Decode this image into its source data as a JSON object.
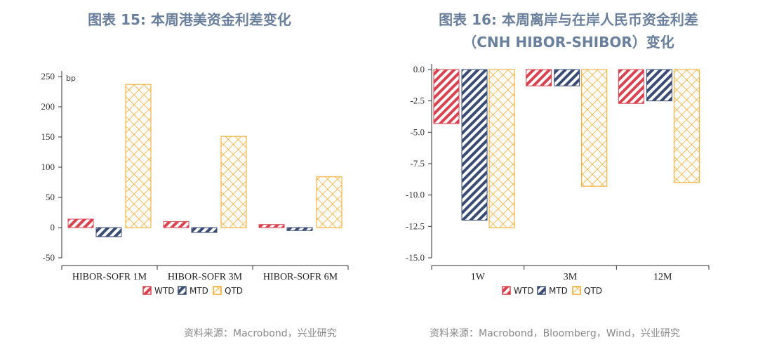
{
  "colors": {
    "WTD": "#d9434f",
    "MTD": "#3a4c74",
    "QTD": "#f5a623",
    "title": "#6a7f9c"
  },
  "charts": [
    {
      "title_lines": [
        "图表 15: 本周港美资金利差变化"
      ],
      "source": "资料来源：Macrobond，兴业研究",
      "chart_data": {
        "type": "bar",
        "unit": "bp",
        "categories": [
          "HIBOR-SOFR 1M",
          "HIBOR-SOFR 3M",
          "HIBOR-SOFR 6M"
        ],
        "series": [
          {
            "name": "WTD",
            "values": [
              14,
              10,
              5
            ]
          },
          {
            "name": "MTD",
            "values": [
              -15,
              -8,
              -5
            ]
          },
          {
            "name": "QTD",
            "values": [
              237,
              151,
              84
            ]
          }
        ],
        "ylim": [
          -50,
          250
        ],
        "yticks": [
          250,
          200,
          150,
          100,
          50,
          0,
          -50
        ],
        "ytick_labels": [
          "250",
          "200",
          "150",
          "100",
          "50",
          "0",
          "-50"
        ],
        "legend": "bottom",
        "grid": false
      }
    },
    {
      "title_lines": [
        "图表 16: 本周离岸与在岸人民币资金利差",
        "（CNH HIBOR-SHIBOR）变化"
      ],
      "source": "资料来源：Macrobond，Bloomberg，Wind，兴业研究",
      "chart_data": {
        "type": "bar",
        "unit": "bp",
        "categories": [
          "1W",
          "3M",
          "12M"
        ],
        "series": [
          {
            "name": "WTD",
            "values": [
              -4.3,
              -1.3,
              -2.7
            ]
          },
          {
            "name": "MTD",
            "values": [
              -12.0,
              -1.3,
              -2.5
            ]
          },
          {
            "name": "QTD",
            "values": [
              -12.6,
              -9.3,
              -9.0
            ]
          }
        ],
        "ylim": [
          -15,
          0
        ],
        "yticks": [
          0,
          -2.5,
          -5,
          -7.5,
          -10,
          -12.5,
          -15
        ],
        "ytick_labels": [
          "0.0",
          "-2.5",
          "-5.0",
          "-7.5",
          "-10.0",
          "-12.5",
          "-15.0"
        ],
        "legend": "bottom",
        "grid": false
      }
    }
  ]
}
